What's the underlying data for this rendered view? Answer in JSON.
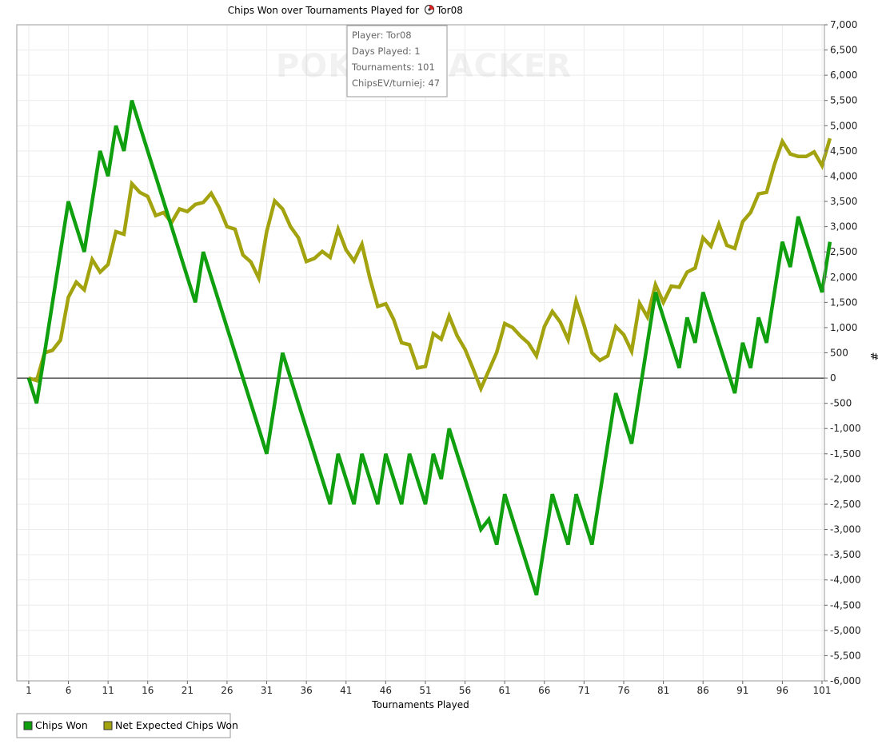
{
  "chart_data": {
    "type": "line",
    "title": "Chips Won over Tournaments Played for",
    "player_name": "Tor08",
    "title_icon": "poker-chip-icon",
    "xlabel": "Tournaments Played",
    "ylabel": "#",
    "xlim": [
      0,
      101
    ],
    "ylim": [
      -6000,
      7000
    ],
    "x_ticks": [
      1,
      6,
      11,
      16,
      21,
      26,
      31,
      36,
      41,
      46,
      51,
      56,
      61,
      66,
      71,
      76,
      81,
      86,
      91,
      96,
      101
    ],
    "y_ticks": [
      -6000,
      -5500,
      -5000,
      -4500,
      -4000,
      -3500,
      -3000,
      -2500,
      -2000,
      -1500,
      -1000,
      -500,
      0,
      500,
      1000,
      1500,
      2000,
      2500,
      3000,
      3500,
      4000,
      4500,
      5000,
      5500,
      6000,
      6500,
      7000
    ],
    "y_tick_labels": [
      "-6,000",
      "-5,500",
      "-5,000",
      "-4,500",
      "-4,000",
      "-3,500",
      "-3,000",
      "-2,500",
      "-2,000",
      "-1,500",
      "-1,000",
      "-500",
      "0",
      "500",
      "1,000",
      "1,500",
      "2,000",
      "2,500",
      "3,000",
      "3,500",
      "4,000",
      "4,500",
      "5,000",
      "5,500",
      "6,000",
      "6,500",
      "7,000"
    ],
    "grid": true,
    "legend_position": "bottom-left",
    "series": [
      {
        "name": "Chips Won",
        "color": "#0f9f0f",
        "values": [
          0,
          -500,
          500,
          1500,
          2500,
          3500,
          3000,
          2500,
          3500,
          4500,
          4000,
          5000,
          4500,
          5500,
          5000,
          4500,
          4000,
          3500,
          3000,
          2500,
          2000,
          1500,
          2500,
          2000,
          1500,
          1000,
          500,
          0,
          -500,
          -1000,
          -1500,
          -500,
          500,
          0,
          -500,
          -1000,
          -1500,
          -2000,
          -2500,
          -1500,
          -2000,
          -2500,
          -1500,
          -2000,
          -2500,
          -1500,
          -2000,
          -2500,
          -1500,
          -2000,
          -2500,
          -1500,
          -2000,
          -1000,
          -1500,
          -2000,
          -2500,
          -3000,
          -2800,
          -3300,
          -2300,
          -2800,
          -3300,
          -3800,
          -4300,
          -3300,
          -2300,
          -2800,
          -3300,
          -2300,
          -2800,
          -3300,
          -2300,
          -1300,
          -300,
          -800,
          -1300,
          -300,
          700,
          1700,
          1200,
          700,
          200,
          1200,
          700,
          1700,
          1200,
          700,
          200,
          -300,
          700,
          200,
          1200,
          700,
          1700,
          2700,
          2200,
          3200,
          2700,
          2200,
          1700,
          2700
        ]
      },
      {
        "name": "Net Expected Chips Won",
        "color": "#a3a30f",
        "values": [
          0,
          -50,
          500,
          550,
          750,
          1600,
          1900,
          1750,
          2350,
          2100,
          2250,
          2900,
          2850,
          3850,
          3680,
          3600,
          3220,
          3280,
          3080,
          3350,
          3300,
          3440,
          3480,
          3660,
          3380,
          3000,
          2950,
          2440,
          2300,
          1980,
          2900,
          3510,
          3350,
          3000,
          2780,
          2310,
          2370,
          2510,
          2390,
          2950,
          2540,
          2320,
          2650,
          1980,
          1420,
          1470,
          1160,
          700,
          660,
          200,
          230,
          880,
          770,
          1230,
          840,
          570,
          190,
          -210,
          150,
          510,
          1080,
          1000,
          830,
          690,
          440,
          1020,
          1320,
          1110,
          760,
          1530,
          1050,
          500,
          350,
          440,
          1020,
          860,
          530,
          1480,
          1210,
          1850,
          1500,
          1820,
          1800,
          2100,
          2180,
          2780,
          2610,
          3050,
          2630,
          2570,
          3100,
          3280,
          3650,
          3680,
          4230,
          4690,
          4440,
          4390,
          4390,
          4480,
          4210,
          4750
        ]
      }
    ]
  },
  "info_box": {
    "player": "Player: Tor08",
    "days": "Days Played: 1",
    "tournaments": "Tournaments: 101",
    "chipsev": "ChipsEV/turniej: 47"
  },
  "watermark": "POKERTRACKER"
}
